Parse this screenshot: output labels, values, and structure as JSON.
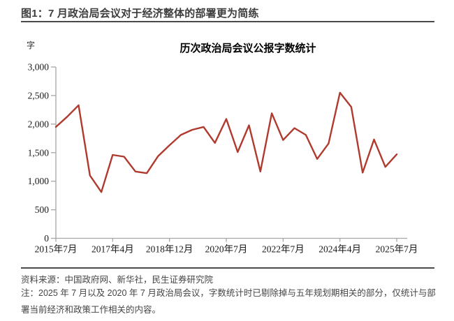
{
  "header": {
    "title": "图1：7 月政治局会议对于经济整体的部署更为简练"
  },
  "chart_data": {
    "type": "line",
    "title": "历次政治局会议公报字数统计",
    "unit_label": "字",
    "xlabel": "",
    "ylabel": "字",
    "ylim": [
      0,
      3000
    ],
    "ytick_step": 500,
    "y_tick_labels": [
      "0",
      "500",
      "1,000",
      "1,500",
      "2,000",
      "2,500",
      "3,000"
    ],
    "x_tick_labels": [
      "2015年7月",
      "2017年4月",
      "2018年12月",
      "2020年7月",
      "2022年7月",
      "2024年4月",
      "2025年7月"
    ],
    "x_tick_indices": [
      0,
      5,
      10,
      15,
      20,
      25,
      30
    ],
    "values": [
      1950,
      2130,
      2330,
      1100,
      810,
      1460,
      1430,
      1170,
      1140,
      1440,
      1630,
      1810,
      1900,
      1950,
      1670,
      2090,
      1510,
      1980,
      1170,
      2190,
      1720,
      1930,
      1810,
      1390,
      1660,
      2550,
      2300,
      1150,
      1730,
      1250,
      1470
    ],
    "grid": "off",
    "legend": "none",
    "line_color": "#b03a2e",
    "axis_color": "#a6a6a6",
    "tick_text_color": "#1a1a1a"
  },
  "footer": {
    "source": "资料来源：中国政府网、新华社，民生证券研究院",
    "note": "注：2025 年 7 月以及 2020 年 7 月政治局会议，字数统计时已剔除掉与五年规划期相关的部分，仅统计与部署当前经济和政策工作相关的内容。"
  }
}
